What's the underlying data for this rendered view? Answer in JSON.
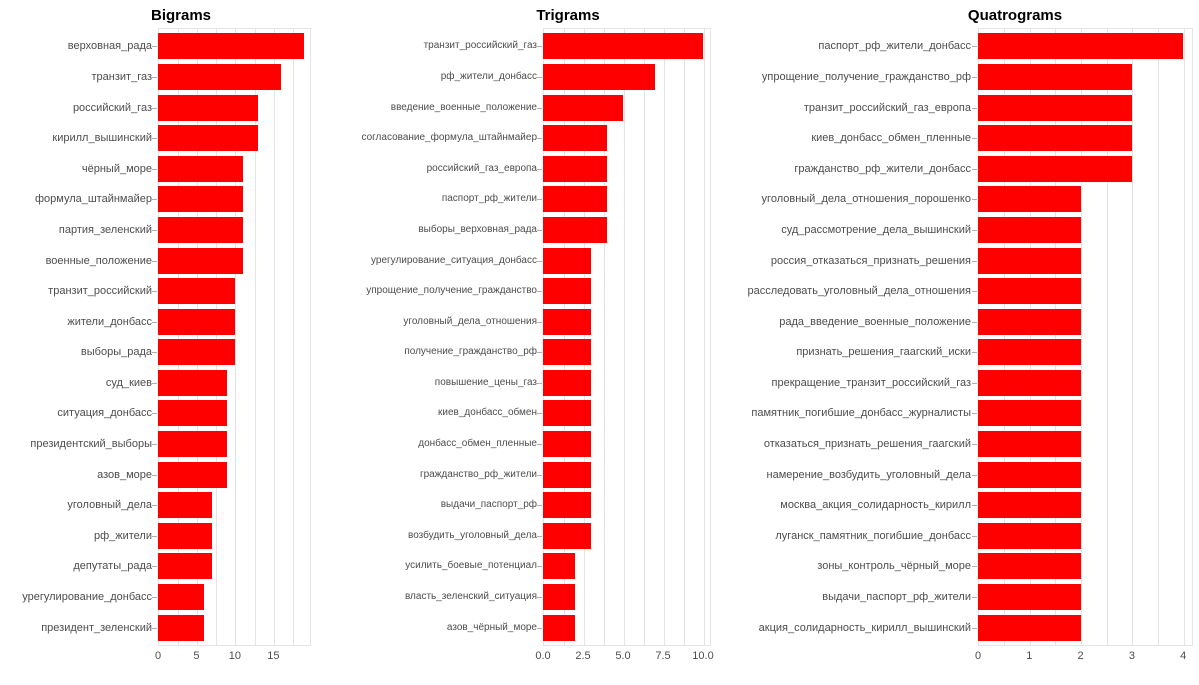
{
  "figure": {
    "background": "#ffffff",
    "description": "Three horizontal bar charts of most frequent Russian n-grams"
  },
  "colors": {
    "bar_fill": "#ff0000",
    "gridline": "#e4e4e4",
    "panel_border": "#e4e4e4",
    "axis_text": "#4d4d4d",
    "tick_mark": "#b0b0b0",
    "title_text": "#000000"
  },
  "chart_data": [
    {
      "type": "bar",
      "orientation": "horizontal",
      "title": "Bigrams",
      "xlabel": "",
      "ylabel": "",
      "legend": false,
      "grid": true,
      "x_axis": {
        "range": [
          0,
          19.95
        ],
        "ticks": [
          0,
          5,
          10,
          15
        ],
        "tick_labels": [
          "0",
          "5",
          "10",
          "15"
        ],
        "grid_step": 2.5
      },
      "categories": [
        "верховная_рада",
        "транзит_газ",
        "российский_газ",
        "кирилл_вышинский",
        "чёрный_море",
        "формула_штайнмайер",
        "партия_зеленский",
        "военные_положение",
        "транзит_российский",
        "жители_донбасс",
        "выборы_рада",
        "суд_киев",
        "ситуация_донбасс",
        "президентский_выборы",
        "азов_море",
        "уголовный_дела",
        "рф_жители",
        "депутаты_рада",
        "урегулирование_донбасс",
        "президент_зеленский"
      ],
      "values": [
        19,
        16,
        13,
        13,
        11,
        11,
        11,
        11,
        10,
        10,
        10,
        9,
        9,
        9,
        9,
        7,
        7,
        7,
        6,
        6
      ]
    },
    {
      "type": "bar",
      "orientation": "horizontal",
      "title": "Trigrams",
      "xlabel": "",
      "ylabel": "",
      "legend": false,
      "grid": true,
      "x_axis": {
        "range": [
          0,
          10.5
        ],
        "ticks": [
          0,
          2.5,
          5,
          7.5,
          10
        ],
        "tick_labels": [
          "0.0",
          "2.5",
          "5.0",
          "7.5",
          "10.0"
        ],
        "grid_step": 1.25
      },
      "categories": [
        "транзит_российский_газ",
        "рф_жители_донбасс",
        "введение_военные_положение",
        "согласование_формула_штайнмайер",
        "российский_газ_европа",
        "паспорт_рф_жители",
        "выборы_верховная_рада",
        "урегулирование_ситуация_донбасс",
        "упрощение_получение_гражданство",
        "уголовный_дела_отношения",
        "получение_гражданство_рф",
        "повышение_цены_газ",
        "киев_донбасс_обмен",
        "донбасс_обмен_пленные",
        "гражданство_рф_жители",
        "выдачи_паспорт_рф",
        "возбудить_уголовный_дела",
        "усилить_боевые_потенциал",
        "власть_зеленский_ситуация",
        "азов_чёрный_море"
      ],
      "values": [
        10,
        7,
        5,
        4,
        4,
        4,
        4,
        3,
        3,
        3,
        3,
        3,
        3,
        3,
        3,
        3,
        3,
        2,
        2,
        2
      ]
    },
    {
      "type": "bar",
      "orientation": "horizontal",
      "title": "Quatrograms",
      "xlabel": "",
      "ylabel": "",
      "legend": false,
      "grid": true,
      "x_axis": {
        "range": [
          0,
          4.2
        ],
        "ticks": [
          0,
          1,
          2,
          3,
          4
        ],
        "tick_labels": [
          "0",
          "1",
          "2",
          "3",
          "4"
        ],
        "grid_step": 0.5
      },
      "categories": [
        "паспорт_рф_жители_донбасс",
        "упрощение_получение_гражданство_рф",
        "транзит_российский_газ_европа",
        "киев_донбасс_обмен_пленные",
        "гражданство_рф_жители_донбасс",
        "уголовный_дела_отношения_порошенко",
        "суд_рассмотрение_дела_вышинский",
        "россия_отказаться_признать_решения",
        "расследовать_уголовный_дела_отношения",
        "рада_введение_военные_положение",
        "признать_решения_гаагский_иски",
        "прекращение_транзит_российский_газ",
        "памятник_погибшие_донбасс_журналисты",
        "отказаться_признать_решения_гаагский",
        "намерение_возбудить_уголовный_дела",
        "москва_акция_солидарность_кирилл",
        "луганск_памятник_погибшие_донбасс",
        "зоны_контроль_чёрный_море",
        "выдачи_паспорт_рф_жители",
        "акция_солидарность_кирилл_вышинский"
      ],
      "values": [
        4,
        3,
        3,
        3,
        3,
        2,
        2,
        2,
        2,
        2,
        2,
        2,
        2,
        2,
        2,
        2,
        2,
        2,
        2,
        2
      ]
    }
  ]
}
